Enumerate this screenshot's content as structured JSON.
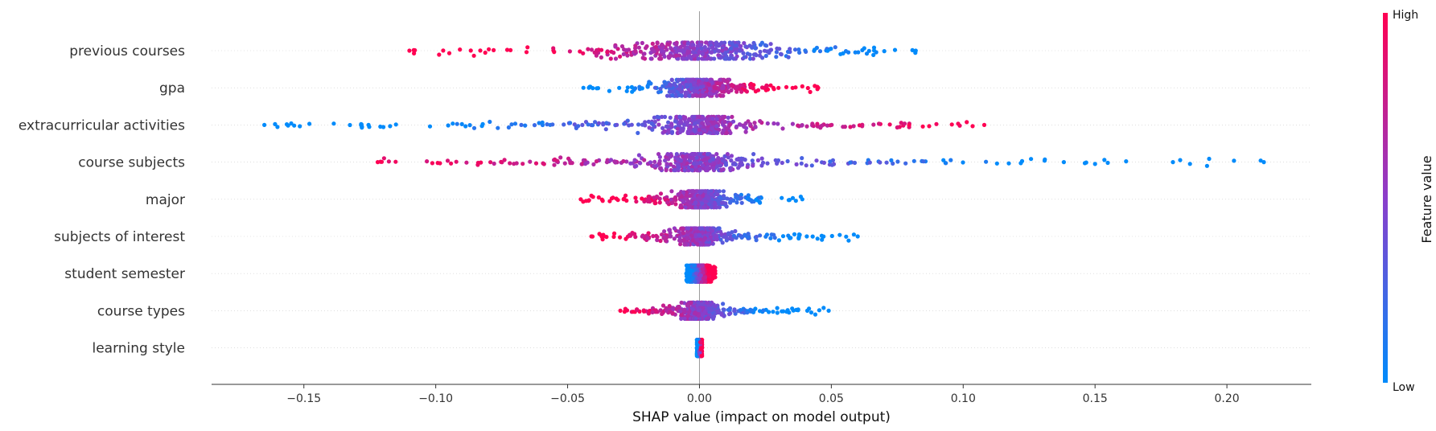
{
  "chart_data": {
    "type": "scatter",
    "subtype": "shap-beeswarm",
    "xlabel": "SHAP value (impact on model output)",
    "xlim": [
      -0.185,
      0.232
    ],
    "xticks": [
      -0.15,
      -0.1,
      -0.05,
      0.0,
      0.05,
      0.1,
      0.15,
      0.2
    ],
    "xtick_labels": [
      "−0.15",
      "−0.10",
      "−0.05",
      "0.00",
      "0.05",
      "0.10",
      "0.15",
      "0.20"
    ],
    "features": [
      {
        "name": "previous courses",
        "min": -0.11,
        "max": 0.082,
        "low_side": "positive",
        "spread": 0.012
      },
      {
        "name": "gpa",
        "min": -0.044,
        "max": 0.045,
        "low_side": "negative",
        "spread": 0.006
      },
      {
        "name": "extracurricular activities",
        "min": -0.165,
        "max": 0.108,
        "low_side": "negative",
        "spread": 0.008
      },
      {
        "name": "course subjects",
        "min": -0.122,
        "max": 0.214,
        "low_side": "positive",
        "spread": 0.008
      },
      {
        "name": "major",
        "min": -0.045,
        "max": 0.039,
        "low_side": "positive",
        "spread": 0.004
      },
      {
        "name": "subjects of interest",
        "min": -0.041,
        "max": 0.06,
        "low_side": "positive",
        "spread": 0.004
      },
      {
        "name": "student semester",
        "min": -0.005,
        "max": 0.006,
        "low_side": "negative",
        "spread": 0.003
      },
      {
        "name": "course types",
        "min": -0.03,
        "max": 0.049,
        "low_side": "positive",
        "spread": 0.003
      },
      {
        "name": "learning style",
        "min": -0.001,
        "max": 0.001,
        "low_side": "negative",
        "spread": 0.001
      }
    ],
    "colorbar": {
      "label": "Feature value",
      "high": "High",
      "low": "Low",
      "high_color": "#ff0052",
      "low_color": "#008bfb"
    },
    "grid": false,
    "legend": "colorbar-right"
  }
}
